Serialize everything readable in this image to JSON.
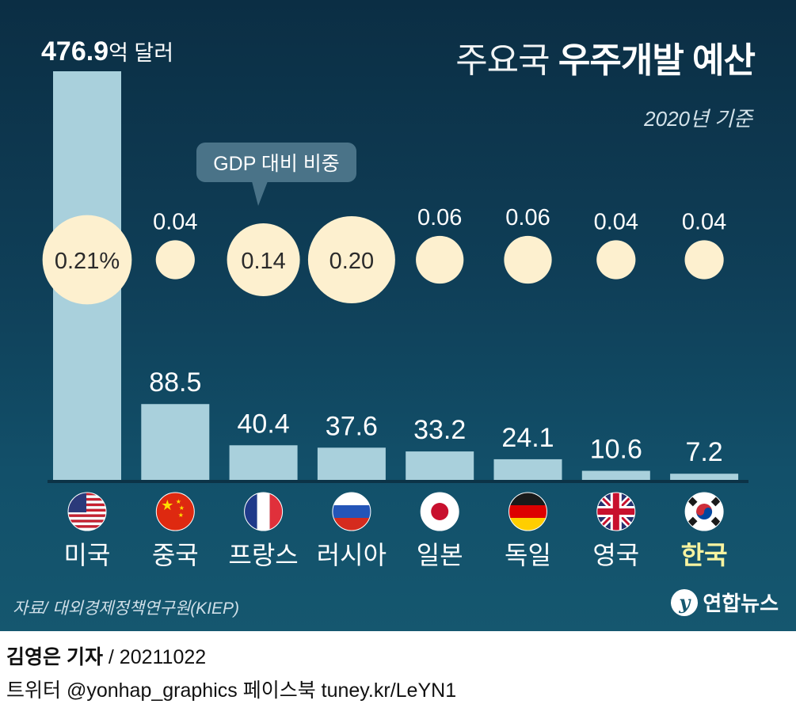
{
  "title": {
    "prefix": "주요국",
    "bold": "우주개발 예산"
  },
  "basis": "2020년 기준",
  "unit_label": {
    "value": "476.9",
    "unit": "억 달러"
  },
  "callout": "GDP 대비 비중",
  "source": "자료/ 대외경제정책연구원(KIEP)",
  "logo": {
    "text": "연합뉴스",
    "mark": "y"
  },
  "footer": {
    "reporter": "김영은 기자",
    "date": "/ 20211022",
    "social": "트위터 @yonhap_graphics  페이스북 tuney.kr/LeYN1"
  },
  "colors": {
    "bar": "#a9d0dc",
    "bubble": "#fdf0cf",
    "highlight": "#f9f4a0",
    "callout": "#4a7388"
  },
  "chart_data": {
    "type": "bar",
    "title": "주요국 우주개발 예산",
    "ylabel": "억 달러",
    "ylim": [
      0,
      476.9
    ],
    "categories": [
      "미국",
      "중국",
      "프랑스",
      "러시아",
      "일본",
      "독일",
      "영국",
      "한국"
    ],
    "values": [
      476.9,
      88.5,
      40.4,
      37.6,
      33.2,
      24.1,
      10.6,
      7.2
    ],
    "value_labels": [
      "",
      "88.5",
      "40.4",
      "37.6",
      "33.2",
      "24.1",
      "10.6",
      "7.2"
    ],
    "gdp_share": [
      0.21,
      0.04,
      0.14,
      0.2,
      0.06,
      0.06,
      0.04,
      0.04
    ],
    "gdp_share_labels": [
      "0.21%",
      "0.04",
      "0.14",
      "0.20",
      "0.06",
      "0.06",
      "0.04",
      "0.04"
    ],
    "flags": [
      "usa",
      "china",
      "france",
      "russia",
      "japan",
      "germany",
      "uk",
      "korea"
    ],
    "highlight_category": "한국"
  }
}
